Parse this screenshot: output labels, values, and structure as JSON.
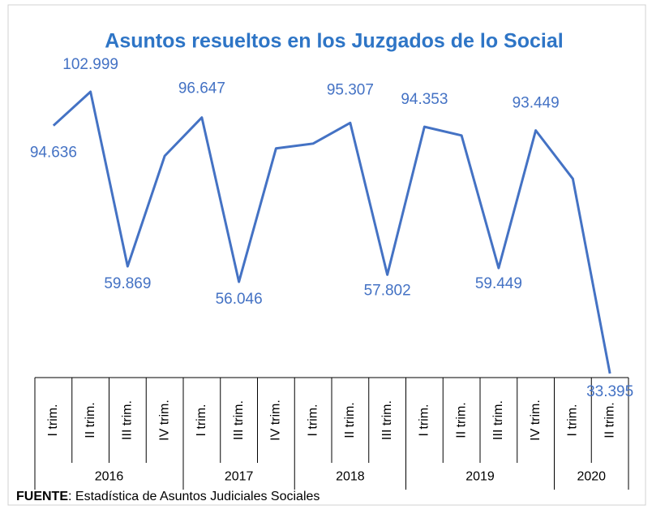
{
  "chart_data": {
    "type": "line",
    "title": "Asuntos resueltos en los Juzgados de lo Social",
    "groups": [
      {
        "label": "2016",
        "categories": [
          "I trim.",
          "II trim.",
          "III trim.",
          "IV trim."
        ]
      },
      {
        "label": "2017",
        "categories": [
          "I trim.",
          "III trim.",
          "IV trim."
        ]
      },
      {
        "label": "2018",
        "categories": [
          "I trim.",
          "II trim.",
          "III trim."
        ]
      },
      {
        "label": "2019",
        "categories": [
          "I trim.",
          "II trim.",
          "III trim.",
          "IV trim."
        ]
      },
      {
        "label": "2020",
        "categories": [
          "I trim.",
          "II trim."
        ]
      }
    ],
    "series": [
      {
        "name": "Asuntos resueltos",
        "color": "#4472c4",
        "values": [
          94636,
          102999,
          59869,
          87150,
          96647,
          56046,
          89000,
          90200,
          95307,
          57802,
          94353,
          92200,
          59449,
          93449,
          81500,
          33395
        ],
        "value_labels": [
          "94.636",
          "102.999",
          "59.869",
          null,
          "96.647",
          "56.046",
          null,
          null,
          "95.307",
          "57.802",
          "94.353",
          null,
          "59.449",
          "93.449",
          null,
          "33.395"
        ]
      }
    ],
    "ylim": [
      33395,
      102999
    ],
    "source_label": "FUENTE",
    "source_text": ": Estadística de Asuntos Judiciales Sociales"
  }
}
